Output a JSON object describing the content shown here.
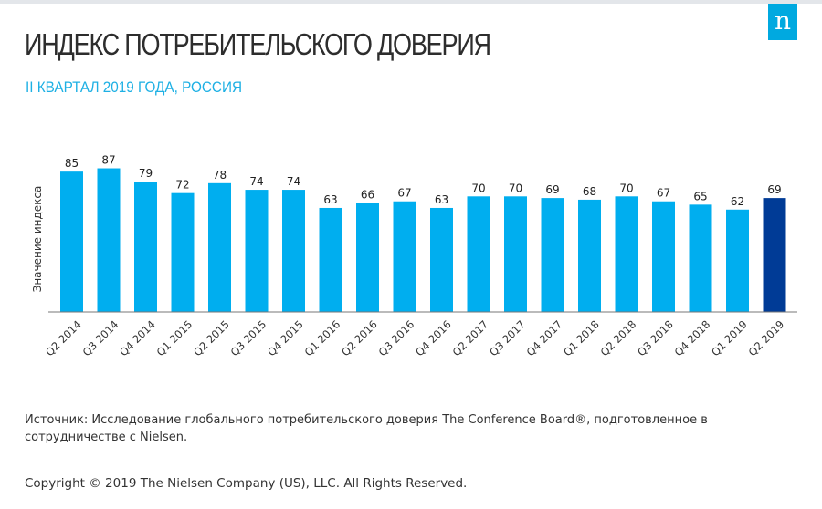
{
  "header": {
    "title": "ИНДЕКС ПОТРЕБИТЕЛЬСКОГО ДОВЕРИЯ",
    "subtitle": "II КВАРТАЛ 2019 ГОДА, РОССИЯ",
    "logo": "n"
  },
  "chart_data": {
    "type": "bar",
    "title": "ИНДЕКС ПОТРЕБИТЕЛЬСКОГО ДОВЕРИЯ",
    "xlabel": "",
    "ylabel": "Значение индекса",
    "ylim": [
      0,
      87
    ],
    "grid": false,
    "categories": [
      "Q2 2014",
      "Q3 2014",
      "Q4 2014",
      "Q1 2015",
      "Q2 2015",
      "Q3 2015",
      "Q4 2015",
      "Q1 2016",
      "Q2 2016",
      "Q3 2016",
      "Q4 2016",
      "Q2 2017",
      "Q3 2017",
      "Q4 2017",
      "Q1 2018",
      "Q2 2018",
      "Q3 2018",
      "Q4 2018",
      "Q1 2019",
      "Q2 2019"
    ],
    "values": [
      85,
      87,
      79,
      72,
      78,
      74,
      74,
      63,
      66,
      67,
      63,
      70,
      70,
      69,
      68,
      70,
      67,
      65,
      62,
      69
    ],
    "colors": {
      "default": "#00aeef",
      "highlight": "#003b96"
    },
    "highlight_index": 19
  },
  "footer": {
    "source": "Источник: Исследование глобального потребительского доверия The Conference Board®, подготовленное в сотрудничестве с Nielsen.",
    "copyright": "Copyright © 2019 The Nielsen Company (US), LLC. All Rights Reserved."
  }
}
